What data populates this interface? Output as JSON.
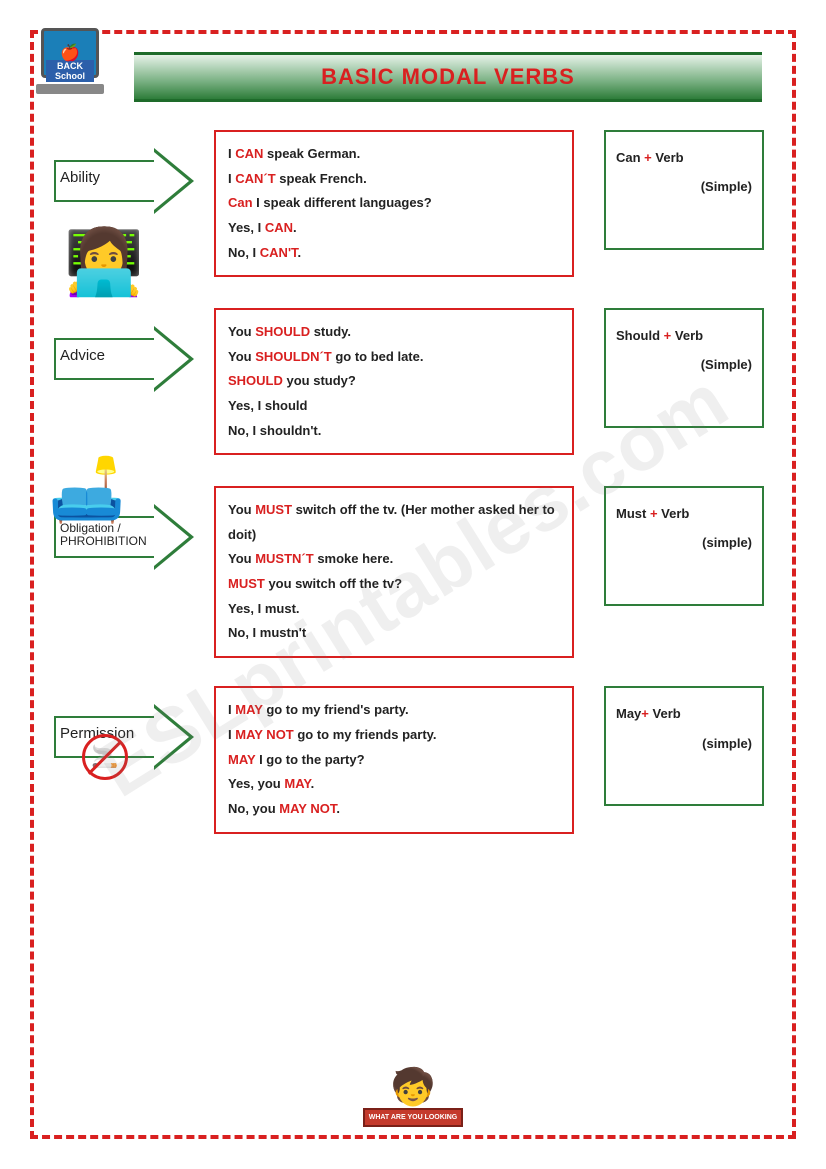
{
  "title": "BASIC MODAL VERBS",
  "watermark": "ESLprintables.com",
  "laptop_text": "BACK School",
  "footer_sign": "WHAT ARE YOU LOOKING",
  "sections": [
    {
      "label": "Ability",
      "label_small": false,
      "examples": [
        [
          {
            "t": "I "
          },
          {
            "t": "CAN",
            "r": true
          },
          {
            "t": " speak German."
          }
        ],
        [
          {
            "t": "I "
          },
          {
            "t": "CAN´T",
            "r": true
          },
          {
            "t": " speak French."
          }
        ],
        [
          {
            "t": "Can",
            "r": true
          },
          {
            "t": " I speak different languages?"
          }
        ],
        [
          {
            "t": "Yes, I "
          },
          {
            "t": "CAN",
            "r": true
          },
          {
            "t": "."
          }
        ],
        [
          {
            "t": "No, I "
          },
          {
            "t": "CAN'T",
            "r": true
          },
          {
            "t": "."
          }
        ]
      ],
      "formula_a": "Can ",
      "formula_b": "+ ",
      "formula_c": "Verb",
      "formula_d": "(Simple)"
    },
    {
      "label": "Advice",
      "label_small": false,
      "examples": [
        [
          {
            "t": "You "
          },
          {
            "t": "SHOULD",
            "r": true
          },
          {
            "t": " study."
          }
        ],
        [
          {
            "t": "You "
          },
          {
            "t": "SHOULDN´T",
            "r": true
          },
          {
            "t": " go to bed late."
          }
        ],
        [
          {
            "t": "SHOULD",
            "r": true
          },
          {
            "t": " you study?"
          }
        ],
        [
          {
            "t": "Yes, I should"
          }
        ],
        [
          {
            "t": "No, I shouldn't."
          }
        ]
      ],
      "formula_a": "Should ",
      "formula_b": "+ ",
      "formula_c": " Verb",
      "formula_d": "(Simple)"
    },
    {
      "label": "Obligation / PHROHIBITION",
      "label_small": true,
      "examples": [
        [
          {
            "t": " You "
          },
          {
            "t": "MUST",
            "r": true
          },
          {
            "t": " switch off the tv. (Her mother asked her to doit)"
          }
        ],
        [
          {
            "t": " You "
          },
          {
            "t": "MUSTN´T",
            "r": true
          },
          {
            "t": " smoke here."
          }
        ],
        [
          {
            "t": "MUST",
            "r": true
          },
          {
            "t": " you switch off the tv?"
          }
        ],
        [
          {
            "t": "Yes, I must."
          }
        ],
        [
          {
            "t": "No, I mustn't"
          }
        ]
      ],
      "formula_a": "Must ",
      "formula_b": "+ ",
      "formula_c": "Verb",
      "formula_d": "(simple)"
    },
    {
      "label": "Permission",
      "label_small": false,
      "examples": [
        [
          {
            "t": "I "
          },
          {
            "t": "MAY",
            "r": true
          },
          {
            "t": " go to my friend's party."
          }
        ],
        [
          {
            "t": "I "
          },
          {
            "t": "MAY NOT",
            "r": true
          },
          {
            "t": " go to my friends party."
          }
        ],
        [
          {
            "t": "MAY",
            "r": true
          },
          {
            "t": " I go to the party?"
          }
        ],
        [
          {
            "t": "Yes, you "
          },
          {
            "t": "MAY",
            "r": true
          },
          {
            "t": "."
          }
        ],
        [
          {
            "t": "No, you "
          },
          {
            "t": "MAY NOT",
            "r": true
          },
          {
            "t": "."
          }
        ]
      ],
      "formula_a": "May",
      "formula_b": "+ ",
      "formula_c": " Verb",
      "formula_d": "(simple)"
    }
  ],
  "colors": {
    "red": "#d92020",
    "green": "#2e7d3a",
    "title_grad_top": "#e6f2e8",
    "title_grad_bot": "#2e7d3a"
  }
}
